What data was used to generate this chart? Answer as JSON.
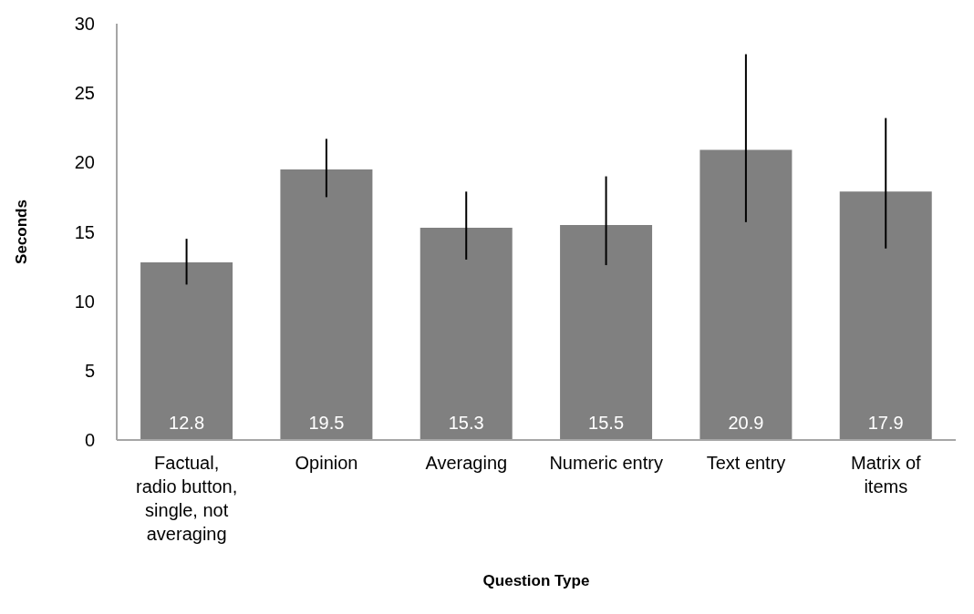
{
  "chart_data": {
    "type": "bar",
    "xlabel": "Question Type",
    "ylabel": "Seconds",
    "categories": [
      "Factual, radio button, single, not averaging",
      "Opinion",
      "Averaging",
      "Numeric entry",
      "Text entry",
      "Matrix of items"
    ],
    "values": [
      12.8,
      19.5,
      15.3,
      15.5,
      20.9,
      17.9
    ],
    "errors": [
      [
        11.2,
        14.5
      ],
      [
        17.5,
        21.7
      ],
      [
        13.0,
        17.9
      ],
      [
        12.6,
        19.0
      ],
      [
        15.7,
        27.8
      ],
      [
        13.8,
        23.2
      ]
    ],
    "color": "#808080",
    "data_labels": true,
    "ylim": [
      0,
      30
    ],
    "yticks": [
      0,
      5,
      10,
      15,
      20,
      25,
      30
    ],
    "grid": false,
    "legend": false
  }
}
